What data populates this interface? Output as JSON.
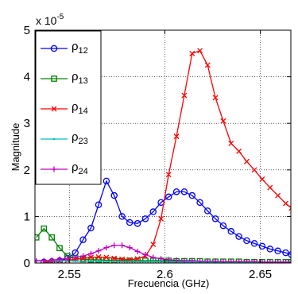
{
  "chart_data": {
    "type": "line",
    "xlabel": "Frecuencia (GHz)",
    "ylabel": "Magnitude",
    "xlim": [
      2.532,
      2.666
    ],
    "ylim": [
      0,
      5
    ],
    "x_ticks": [
      2.55,
      2.6,
      2.65
    ],
    "x_tick_labels": [
      "2.55",
      "2.6",
      "2.65"
    ],
    "y_ticks": [
      0,
      1,
      2,
      3,
      4,
      5
    ],
    "y_tick_labels": [
      "0",
      "1",
      "2",
      "3",
      "4",
      "5"
    ],
    "y_exponent": {
      "base": "x 10",
      "power": "-5"
    },
    "grid": true,
    "legend_position": "top-left",
    "series": [
      {
        "name": "ρ12",
        "name_main": "ρ",
        "name_sub": "12",
        "color": "#0000ff",
        "marker": "circle",
        "x": [
          2.5367,
          2.5408,
          2.5449,
          2.549,
          2.5531,
          2.5572,
          2.5613,
          2.5653,
          2.5694,
          2.5735,
          2.5776,
          2.5816,
          2.5857,
          2.5898,
          2.5939,
          2.598,
          2.602,
          2.6061,
          2.6102,
          2.6143,
          2.6184,
          2.6224,
          2.6265,
          2.6306,
          2.6347,
          2.6388,
          2.6429,
          2.6469,
          2.651,
          2.6551,
          2.6592,
          2.6633,
          2.6663
        ],
        "y": [
          0.02,
          0.03,
          0.05,
          0.1,
          0.22,
          0.5,
          0.75,
          1.25,
          1.76,
          1.45,
          1.0,
          0.87,
          0.85,
          0.95,
          1.1,
          1.3,
          1.42,
          1.53,
          1.53,
          1.45,
          1.3,
          1.12,
          0.95,
          0.8,
          0.68,
          0.57,
          0.48,
          0.42,
          0.36,
          0.3,
          0.26,
          0.22,
          0.18
        ]
      },
      {
        "name": "ρ13",
        "name_main": "ρ",
        "name_sub": "13",
        "color": "#008000",
        "marker": "square",
        "x": [
          2.5327,
          2.5367,
          2.5408,
          2.5449,
          2.549,
          2.5531,
          2.5572,
          2.5613,
          2.5653,
          2.5694,
          2.5735,
          2.5776,
          2.5816,
          2.5857,
          2.5898,
          2.5939,
          2.598,
          2.602,
          2.6061,
          2.6102,
          2.6143,
          2.6184,
          2.6224,
          2.6265,
          2.6306,
          2.6347,
          2.6388,
          2.6429,
          2.6469,
          2.651,
          2.6551,
          2.6592,
          2.6633,
          2.6663
        ],
        "y": [
          0.55,
          0.74,
          0.55,
          0.32,
          0.15,
          0.1,
          0.08,
          0.07,
          0.07,
          0.06,
          0.06,
          0.05,
          0.05,
          0.05,
          0.05,
          0.05,
          0.05,
          0.05,
          0.04,
          0.04,
          0.04,
          0.04,
          0.03,
          0.03,
          0.03,
          0.03,
          0.03,
          0.02,
          0.02,
          0.02,
          0.02,
          0.02,
          0.02,
          0.02
        ]
      },
      {
        "name": "ρ14",
        "name_main": "ρ",
        "name_sub": "14",
        "color": "#ff0000",
        "marker": "x",
        "x": [
          2.5367,
          2.5408,
          2.5449,
          2.549,
          2.5531,
          2.5572,
          2.5613,
          2.5653,
          2.5694,
          2.5735,
          2.5776,
          2.5816,
          2.5857,
          2.5898,
          2.5939,
          2.598,
          2.602,
          2.6061,
          2.6102,
          2.6143,
          2.6184,
          2.6224,
          2.6265,
          2.6306,
          2.6347,
          2.6388,
          2.6429,
          2.6469,
          2.651,
          2.6551,
          2.6592,
          2.6633,
          2.6663
        ],
        "y": [
          0.02,
          0.03,
          0.04,
          0.06,
          0.08,
          0.1,
          0.12,
          0.13,
          0.12,
          0.1,
          0.08,
          0.07,
          0.09,
          0.15,
          0.4,
          0.95,
          1.9,
          2.72,
          3.6,
          4.5,
          4.56,
          4.25,
          3.55,
          3.05,
          2.57,
          2.4,
          2.18,
          2.0,
          1.8,
          1.62,
          1.45,
          1.28,
          1.18
        ]
      },
      {
        "name": "ρ23",
        "name_main": "ρ",
        "name_sub": "23",
        "color": "#00bfbf",
        "marker": "dot",
        "x": [
          2.5327,
          2.5367,
          2.5408,
          2.5449,
          2.549,
          2.5531,
          2.5572,
          2.5613,
          2.5653,
          2.5694,
          2.5735,
          2.5776,
          2.5816,
          2.5857,
          2.5898,
          2.5939,
          2.598,
          2.602,
          2.6061,
          2.6102,
          2.6143,
          2.6184,
          2.6224,
          2.6265,
          2.6306,
          2.6347,
          2.6388,
          2.6429,
          2.6469,
          2.651,
          2.6551,
          2.6592,
          2.6633,
          2.6663
        ],
        "y": [
          0.05,
          0.05,
          0.05,
          0.05,
          0.05,
          0.04,
          0.04,
          0.04,
          0.04,
          0.03,
          0.03,
          0.03,
          0.03,
          0.03,
          0.03,
          0.03,
          0.03,
          0.02,
          0.02,
          0.02,
          0.02,
          0.02,
          0.02,
          0.02,
          0.02,
          0.02,
          0.02,
          0.02,
          0.02,
          0.02,
          0.02,
          0.02,
          0.02,
          0.02
        ]
      },
      {
        "name": "ρ24",
        "name_main": "ρ",
        "name_sub": "24",
        "color": "#bf00bf",
        "marker": "plus",
        "x": [
          2.5327,
          2.5367,
          2.5408,
          2.5449,
          2.549,
          2.5531,
          2.5572,
          2.5613,
          2.5653,
          2.5694,
          2.5735,
          2.5776,
          2.5816,
          2.5857,
          2.5898,
          2.5939,
          2.598,
          2.602,
          2.6061,
          2.6102,
          2.6143,
          2.6184,
          2.6224,
          2.6265,
          2.6306,
          2.6347,
          2.6388,
          2.6429,
          2.6469,
          2.651,
          2.6551,
          2.6592,
          2.6633,
          2.6663
        ],
        "y": [
          0.05,
          0.05,
          0.06,
          0.08,
          0.1,
          0.12,
          0.15,
          0.2,
          0.26,
          0.33,
          0.38,
          0.38,
          0.33,
          0.25,
          0.18,
          0.12,
          0.09,
          0.07,
          0.06,
          0.05,
          0.05,
          0.04,
          0.04,
          0.04,
          0.03,
          0.03,
          0.03,
          0.03,
          0.03,
          0.02,
          0.02,
          0.02,
          0.02,
          0.02
        ]
      }
    ]
  }
}
